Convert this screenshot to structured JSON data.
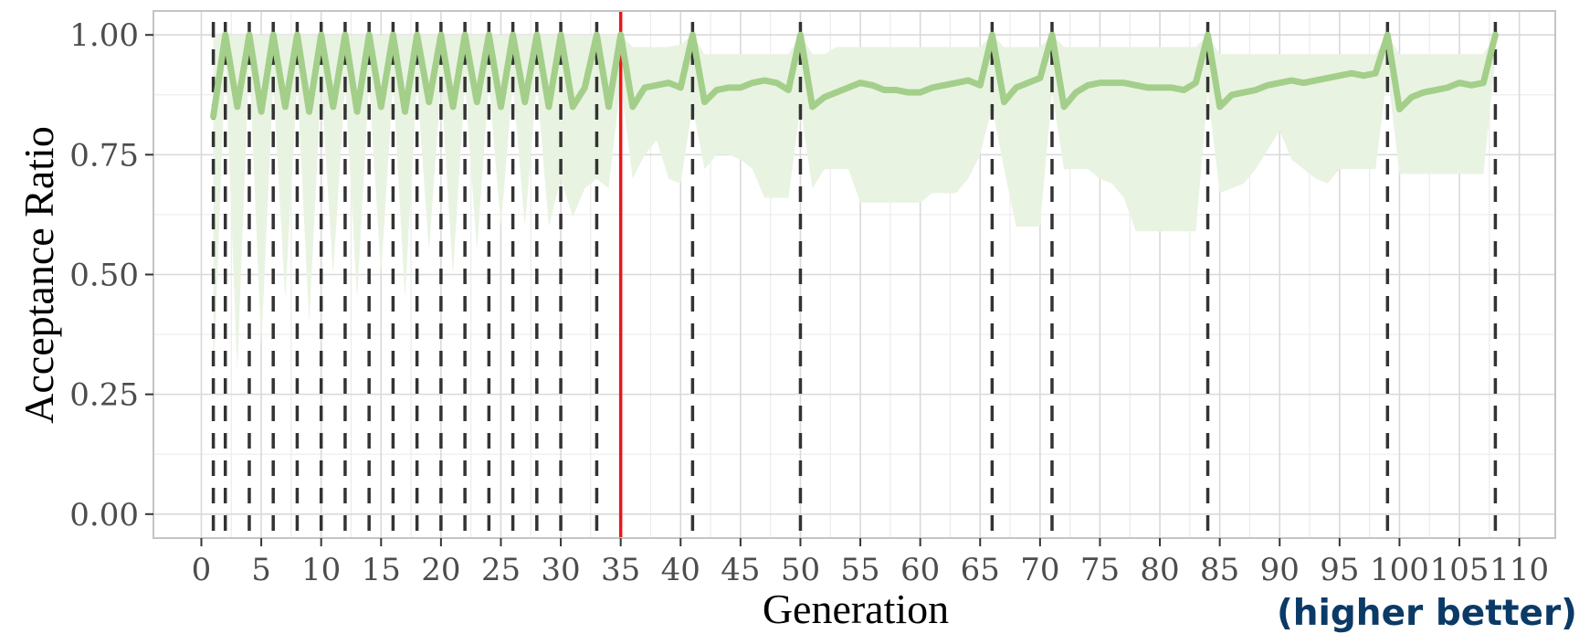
{
  "chart_data": {
    "type": "line",
    "title": "",
    "xlabel": "Generation",
    "ylabel": "Acceptance Ratio",
    "annotation": "(higher better)",
    "xlim": [
      -4,
      113
    ],
    "ylim": [
      -0.05,
      1.05
    ],
    "x_ticks": [
      0,
      5,
      10,
      15,
      20,
      25,
      30,
      35,
      40,
      45,
      50,
      55,
      60,
      65,
      70,
      75,
      80,
      85,
      90,
      95,
      100,
      105,
      110
    ],
    "x_tick_labels": [
      "0",
      "5",
      "10",
      "15",
      "20",
      "25",
      "30",
      "35",
      "40",
      "45",
      "50",
      "55",
      "60",
      "65",
      "70",
      "75",
      "80",
      "85",
      "90",
      "95",
      "100",
      "105",
      "110"
    ],
    "y_ticks": [
      0,
      0.25,
      0.5,
      0.75,
      1.0
    ],
    "y_tick_labels": [
      "0.00",
      "0.25",
      "0.50",
      "0.75",
      "1.00"
    ],
    "grid": true,
    "colors": {
      "line": "#a3cf8a",
      "band": "#e9f3e2",
      "dashed": "#333333",
      "red": "#e8161b",
      "grid": "#d9d9d9",
      "frame": "#c4c4c4"
    },
    "series": [
      {
        "x": [
          1,
          2,
          3,
          4,
          5,
          6,
          7,
          8,
          9,
          10,
          11,
          12,
          13,
          14,
          15,
          16,
          17,
          18,
          19,
          20,
          21,
          22,
          23,
          24,
          25,
          26,
          27,
          28,
          29,
          30,
          31,
          32,
          33,
          34,
          35,
          36,
          37,
          38,
          39,
          40,
          41,
          42,
          43,
          44,
          45,
          46,
          47,
          48,
          49,
          50,
          51,
          52,
          53,
          54,
          55,
          56,
          57,
          58,
          59,
          60,
          61,
          62,
          63,
          64,
          65,
          66,
          67,
          68,
          69,
          70,
          71,
          72,
          73,
          74,
          75,
          76,
          77,
          78,
          79,
          80,
          81,
          82,
          83,
          84,
          85,
          86,
          87,
          88,
          89,
          90,
          91,
          92,
          93,
          94,
          95,
          96,
          97,
          98,
          99,
          100,
          101,
          102,
          103,
          104,
          105,
          106,
          107,
          108
        ],
        "y": [
          0.83,
          1.0,
          0.85,
          1.0,
          0.84,
          1.0,
          0.85,
          1.0,
          0.84,
          1.0,
          0.85,
          1.0,
          0.84,
          1.0,
          0.85,
          1.0,
          0.84,
          1.0,
          0.86,
          1.0,
          0.85,
          1.0,
          0.86,
          1.0,
          0.85,
          1.0,
          0.86,
          1.0,
          0.85,
          1.0,
          0.85,
          0.89,
          1.0,
          0.85,
          1.0,
          0.85,
          0.89,
          0.895,
          0.9,
          0.89,
          1.0,
          0.86,
          0.885,
          0.89,
          0.89,
          0.9,
          0.905,
          0.9,
          0.885,
          1.0,
          0.85,
          0.87,
          0.88,
          0.89,
          0.9,
          0.895,
          0.885,
          0.885,
          0.88,
          0.88,
          0.89,
          0.895,
          0.9,
          0.905,
          0.895,
          1.0,
          0.86,
          0.89,
          0.9,
          0.91,
          1.0,
          0.85,
          0.88,
          0.895,
          0.9,
          0.9,
          0.9,
          0.895,
          0.89,
          0.89,
          0.89,
          0.885,
          0.9,
          1.0,
          0.85,
          0.875,
          0.88,
          0.885,
          0.895,
          0.9,
          0.905,
          0.9,
          0.905,
          0.91,
          0.915,
          0.92,
          0.915,
          0.92,
          1.0,
          0.845,
          0.87,
          0.88,
          0.885,
          0.89,
          0.9,
          0.895,
          0.9,
          1.0
        ],
        "y_lower": [
          0.27,
          0.95,
          0.3,
          0.95,
          0.35,
          0.9,
          0.45,
          0.9,
          0.4,
          0.9,
          0.5,
          0.9,
          0.45,
          0.9,
          0.5,
          0.9,
          0.45,
          0.9,
          0.55,
          0.9,
          0.5,
          0.9,
          0.55,
          0.9,
          0.6,
          0.9,
          0.6,
          0.9,
          0.6,
          0.7,
          0.62,
          0.68,
          0.7,
          0.68,
          0.9,
          0.7,
          0.75,
          0.78,
          0.7,
          0.69,
          0.85,
          0.72,
          0.75,
          0.75,
          0.74,
          0.72,
          0.66,
          0.66,
          0.66,
          0.85,
          0.68,
          0.72,
          0.72,
          0.72,
          0.65,
          0.65,
          0.65,
          0.65,
          0.65,
          0.65,
          0.67,
          0.67,
          0.67,
          0.7,
          0.75,
          0.85,
          0.72,
          0.6,
          0.6,
          0.6,
          0.88,
          0.72,
          0.72,
          0.72,
          0.7,
          0.69,
          0.66,
          0.59,
          0.59,
          0.59,
          0.59,
          0.59,
          0.59,
          0.88,
          0.67,
          0.68,
          0.69,
          0.72,
          0.76,
          0.8,
          0.74,
          0.72,
          0.7,
          0.69,
          0.72,
          0.72,
          0.72,
          0.72,
          0.92,
          0.71,
          0.71,
          0.71,
          0.71,
          0.71,
          0.71,
          0.71,
          0.71,
          0.95
        ],
        "y_upper": [
          1.0,
          1.0,
          1.0,
          1.0,
          1.0,
          1.0,
          1.0,
          1.0,
          1.0,
          1.0,
          1.0,
          1.0,
          1.0,
          1.0,
          1.0,
          1.0,
          1.0,
          1.0,
          1.0,
          1.0,
          1.0,
          1.0,
          1.0,
          1.0,
          1.0,
          1.0,
          1.0,
          1.0,
          1.0,
          1.0,
          1.0,
          1.0,
          1.0,
          1.0,
          1.0,
          0.975,
          0.975,
          0.975,
          0.975,
          0.98,
          1.0,
          0.96,
          0.96,
          0.96,
          0.96,
          0.96,
          0.96,
          0.96,
          0.96,
          1.0,
          0.96,
          0.96,
          0.975,
          0.975,
          0.975,
          0.975,
          0.975,
          0.975,
          0.975,
          0.975,
          0.975,
          0.975,
          0.975,
          0.975,
          0.975,
          1.0,
          0.975,
          0.975,
          0.975,
          0.975,
          1.0,
          0.975,
          0.975,
          0.975,
          0.975,
          0.975,
          0.975,
          0.975,
          0.975,
          0.975,
          0.975,
          0.975,
          0.975,
          1.0,
          0.96,
          0.96,
          0.96,
          0.96,
          0.96,
          0.96,
          0.96,
          0.96,
          0.96,
          0.96,
          0.96,
          0.96,
          0.96,
          0.96,
          1.0,
          0.96,
          0.96,
          0.96,
          0.96,
          0.96,
          0.96,
          0.96,
          0.96,
          1.0
        ]
      }
    ],
    "dashed_verticals": [
      1,
      2,
      4,
      6,
      8,
      10,
      12,
      14,
      16,
      18,
      20,
      22,
      24,
      26,
      28,
      30,
      33,
      41,
      50,
      66,
      71,
      84,
      99,
      108
    ],
    "red_vertical": 35
  }
}
